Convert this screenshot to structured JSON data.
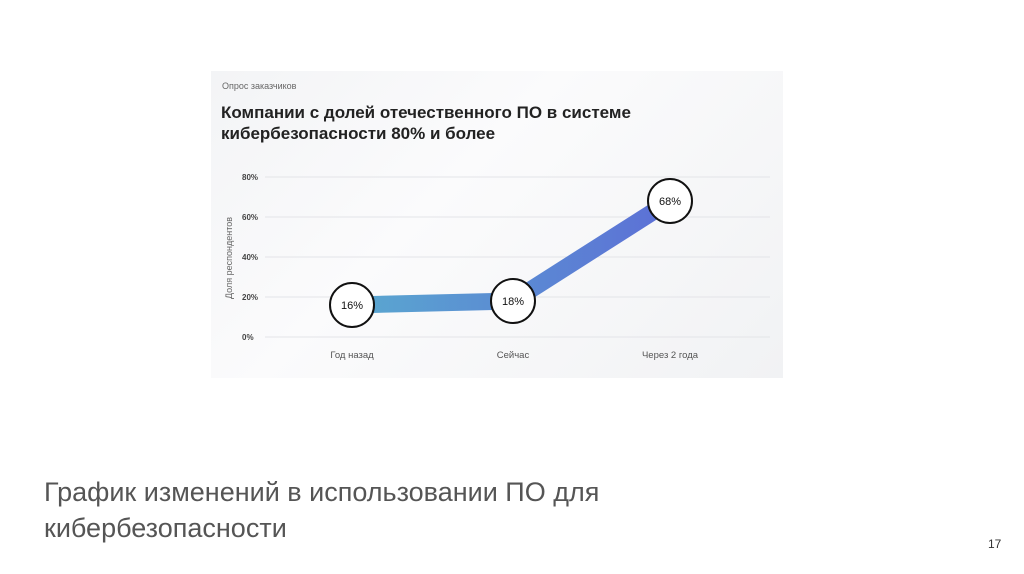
{
  "slide": {
    "title_line1": "График изменений в использовании ПО для",
    "title_line2": "кибербезопасности",
    "page_number": "17"
  },
  "chart_data": {
    "type": "line",
    "subtitle": "Опрос заказчиков",
    "title_line1": "Компании с долей отечественного ПО в системе",
    "title_line2": "кибербезопасности 80% и более",
    "ylabel": "Доля респондентов",
    "categories": [
      "Год назад",
      "Сейчас",
      "Через 2 года"
    ],
    "values": [
      16,
      18,
      68
    ],
    "data_labels": [
      "16%",
      "18%",
      "68%"
    ],
    "yticks": [
      0,
      20,
      40,
      60,
      80
    ],
    "ytick_labels": [
      "0%",
      "20%",
      "40%",
      "60%",
      "80%"
    ],
    "ylim": [
      0,
      80
    ],
    "grid": true,
    "colors": {
      "line_start": "#5aa8d0",
      "line_end": "#5c6fd6",
      "grid": "#e3e4e8"
    }
  }
}
